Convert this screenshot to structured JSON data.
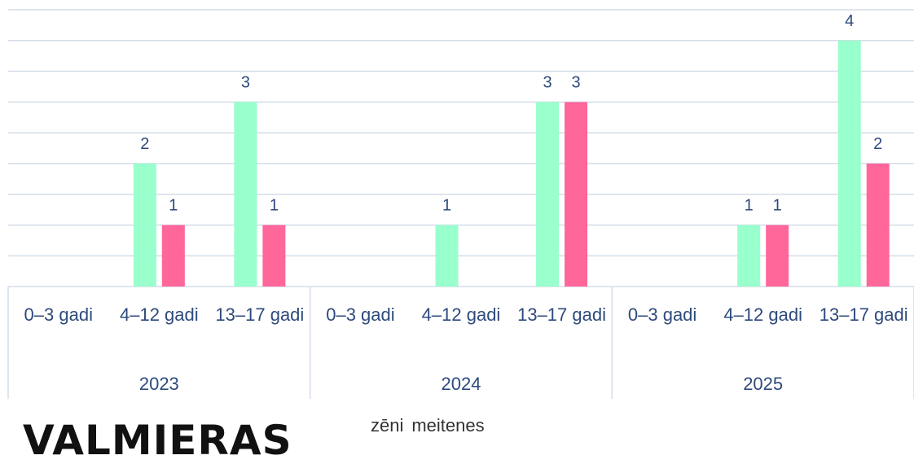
{
  "chart_data": {
    "type": "bar",
    "categories": [
      "0–3 gadi",
      "4–12 gadi",
      "13–17 gadi",
      "0–3 gadi",
      "4–12 gadi",
      "13–17 gadi",
      "0–3 gadi",
      "4–12 gadi",
      "13–17 gadi"
    ],
    "groups": [
      "2023",
      "2024",
      "2025"
    ],
    "series": [
      {
        "name": "zēni",
        "color": "#99ffcc",
        "values": [
          null,
          2,
          3,
          null,
          1,
          3,
          null,
          1,
          4
        ]
      },
      {
        "name": "meitenes",
        "color": "#ff6699",
        "values": [
          null,
          1,
          1,
          null,
          null,
          3,
          null,
          1,
          2
        ]
      }
    ],
    "ylim": [
      0,
      4.5
    ],
    "yticks": [
      0,
      0.5,
      1,
      1.5,
      2,
      2.5,
      3,
      3.5,
      4,
      4.5
    ],
    "grid": true,
    "logo": "VALMIERAS"
  }
}
